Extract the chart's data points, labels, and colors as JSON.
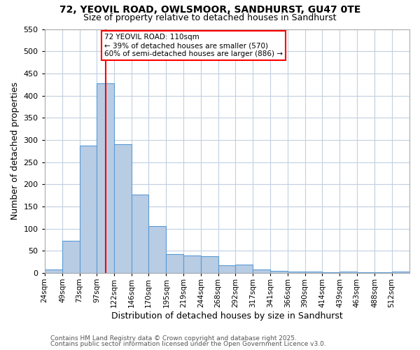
{
  "title_line1": "72, YEOVIL ROAD, OWLSMOOR, SANDHURST, GU47 0TE",
  "title_line2": "Size of property relative to detached houses in Sandhurst",
  "xlabel": "Distribution of detached houses by size in Sandhurst",
  "ylabel": "Number of detached properties",
  "bin_labels": [
    "24sqm",
    "49sqm",
    "73sqm",
    "97sqm",
    "122sqm",
    "146sqm",
    "170sqm",
    "195sqm",
    "219sqm",
    "244sqm",
    "268sqm",
    "292sqm",
    "317sqm",
    "341sqm",
    "366sqm",
    "390sqm",
    "414sqm",
    "439sqm",
    "463sqm",
    "488sqm",
    "512sqm"
  ],
  "bin_edges": [
    24,
    49,
    73,
    97,
    122,
    146,
    170,
    195,
    219,
    244,
    268,
    292,
    317,
    341,
    366,
    390,
    414,
    439,
    463,
    488,
    512,
    537
  ],
  "bar_heights": [
    7,
    72,
    287,
    428,
    290,
    176,
    105,
    42,
    40,
    38,
    17,
    18,
    8,
    4,
    3,
    3,
    2,
    3,
    1,
    2,
    3
  ],
  "bar_color": "#b8cce4",
  "bar_edge_color": "#5b9bd5",
  "property_size": 110,
  "vline_color": "#ff0000",
  "annotation_text": "72 YEOVIL ROAD: 110sqm\n← 39% of detached houses are smaller (570)\n60% of semi-detached houses are larger (886) →",
  "annotation_box_color": "#ffffff",
  "annotation_box_edge_color": "#ff0000",
  "ylim": [
    0,
    550
  ],
  "yticks": [
    0,
    50,
    100,
    150,
    200,
    250,
    300,
    350,
    400,
    450,
    500,
    550
  ],
  "footer_line1": "Contains HM Land Registry data © Crown copyright and database right 2025.",
  "footer_line2": "Contains public sector information licensed under the Open Government Licence v3.0.",
  "bg_color": "#ffffff",
  "grid_color": "#c0d0e0"
}
